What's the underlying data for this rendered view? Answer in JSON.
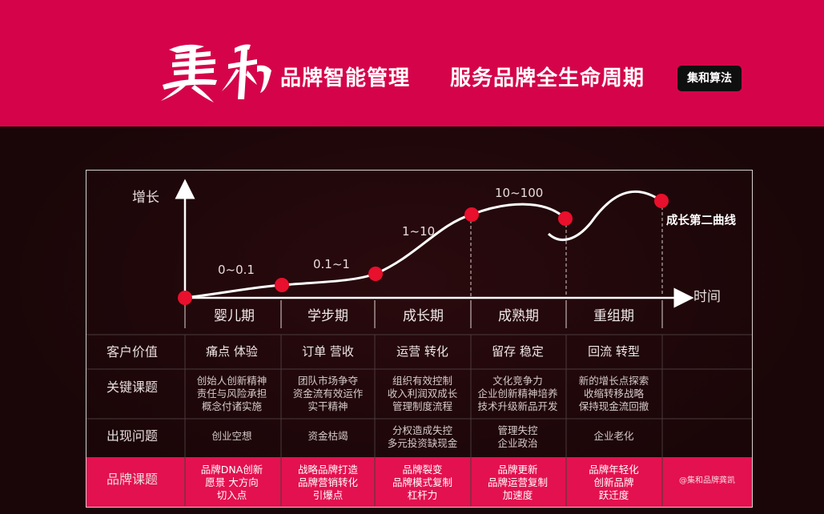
{
  "header": {
    "brand_name": "集和",
    "subtitle": "品牌智能管理",
    "tagline": "服务品牌全生命周期",
    "tag": "集和算法"
  },
  "diagram": {
    "y_axis_label": "增长",
    "x_axis_label": "时间",
    "ranges": [
      "0~0.1",
      "0.1~1",
      "1~10",
      "10~100"
    ],
    "second_curve_label": "成长第二曲线",
    "stages": [
      "婴儿期",
      "学步期",
      "成长期",
      "成熟期",
      "重组期"
    ]
  },
  "table": {
    "rows": [
      {
        "label": "客户价值",
        "cells": [
          [
            "痛点 体验"
          ],
          [
            "订单 营收"
          ],
          [
            "运营 转化"
          ],
          [
            "留存 稳定"
          ],
          [
            "回流 转型"
          ]
        ]
      },
      {
        "label": "关键课题",
        "cells": [
          [
            "创始人创新精神",
            "责任与风险承担",
            "概念付诸实施"
          ],
          [
            "团队市场争夺",
            "资金流有效运作",
            "实干精神"
          ],
          [
            "组织有效控制",
            "收入利润双成长",
            "管理制度流程"
          ],
          [
            "文化竞争力",
            "企业创新精神培养",
            "技术升级新品开发"
          ],
          [
            "新的增长点探索",
            "收缩转移战略",
            "保持现金流回撤"
          ]
        ]
      },
      {
        "label": "出现问题",
        "cells": [
          [
            "创业空想"
          ],
          [
            "资金枯竭"
          ],
          [
            "分权造成失控",
            "多元投资缺现金"
          ],
          [
            "管理失控",
            "企业政治"
          ],
          [
            "企业老化"
          ]
        ]
      },
      {
        "label": "品牌课题",
        "cells": [
          [
            "品牌DNA创新",
            "愿景 大方向",
            "切入点"
          ],
          [
            "战略品牌打造",
            "品牌营销转化",
            "引爆点"
          ],
          [
            "品牌裂变",
            "品牌模式复制",
            "杠杆力"
          ],
          [
            "品牌更新",
            "品牌运营复制",
            "加速度"
          ],
          [
            "品牌年轻化",
            "创新品牌",
            "跃迁度"
          ]
        ]
      }
    ],
    "credit": "@集和品牌龚凯"
  },
  "colors": {
    "header_bg": "#d5044a",
    "dark_bg": "#1a0608",
    "band_bg": "#e3114f",
    "marker": "#e8102c"
  }
}
